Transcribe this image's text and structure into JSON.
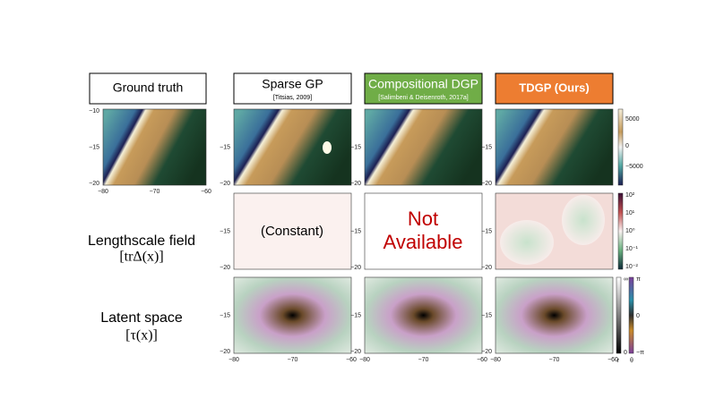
{
  "headers": [
    {
      "title": "Ground truth"
    },
    {
      "title": "Sparse GP",
      "citation": "[Titsias, 2009]"
    },
    {
      "title": "Compositional DGP",
      "citation": "[Salimbeni & Deisenroth, 2017a]"
    },
    {
      "title": "TDGP (Ours)"
    }
  ],
  "row_labels": [
    {
      "line1": "Lengthscale field",
      "line2": "[trΔ(x)]"
    },
    {
      "line1": "Latent space",
      "line2": "[τ(x)]"
    }
  ],
  "axes": {
    "x_ticks": [
      "−80",
      "−70",
      "−60"
    ],
    "y_ticks": [
      "−10",
      "−15",
      "−20"
    ]
  },
  "panel_texts": {
    "constant": "(Constant)",
    "not_available": [
      "Not",
      "Available"
    ]
  },
  "colorbars": {
    "value": [
      "5000",
      "0",
      "−5000"
    ],
    "lengthscale": [
      "10²",
      "10¹",
      "10⁰",
      "10⁻¹",
      "10⁻²"
    ],
    "radius": {
      "label": "r",
      "ticks": [
        "∞",
        "0"
      ]
    },
    "angle": {
      "label": "θ",
      "ticks": [
        "π",
        "0",
        "−π"
      ]
    }
  }
}
